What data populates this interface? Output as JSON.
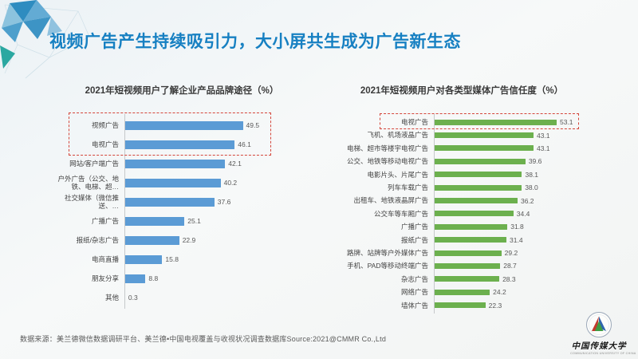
{
  "slide": {
    "title": "视频广告产生持续吸引力，大小屏共生成为广告新生态",
    "source_note": "数据来源：美兰德微信数据调研平台、美兰德•中国电视覆盖与收视状况调查数据库Source:2021@CMMR Co.,Ltd"
  },
  "colors": {
    "title_blue": "#1780c2",
    "bar_blue": "#5b9bd5",
    "bar_green": "#6cb04e",
    "highlight_red": "#d4453a",
    "value_text": "#595959"
  },
  "logo": {
    "name": "中国传媒大学",
    "subtext": "COMMUNICATION UNIVERSITY OF CHINA"
  },
  "chart_data": [
    {
      "type": "bar",
      "orientation": "horizontal",
      "title": "2021年短视频用户了解企业产品品牌途径（%）",
      "categories": [
        "视频广告",
        "电视广告",
        "网站/客户端广告",
        "户外广告（公交、地铁、电梯、超…",
        "社交媒体（微信推送、…",
        "广播广告",
        "报纸/杂志广告",
        "电商直播",
        "朋友分享",
        "其他"
      ],
      "values": [
        49.5,
        46.1,
        42.1,
        40.2,
        37.6,
        25.1,
        22.9,
        15.8,
        8.8,
        0.3
      ],
      "bar_color": "#5b9bd5",
      "highlight_count": 2,
      "highlight_note": "red dashed emphasis box around top 2 bars",
      "grid": false,
      "legend": false,
      "data_labels": true
    },
    {
      "type": "bar",
      "orientation": "horizontal",
      "title": "2021年短视频用户对各类型媒体广告信任度（%）",
      "categories": [
        "电视广告",
        "飞机、机场液晶广告",
        "电梯、超市等楼宇电视广告",
        "公交、地铁等移动电视广告",
        "电影片头、片尾广告",
        "列车车载广告",
        "出租车、地铁液晶屏广告",
        "公交车等车厢广告",
        "广播广告",
        "报纸广告",
        "路牌、站牌等户外媒体广告",
        "手机、PAD等移动终端广告",
        "杂志广告",
        "网络广告",
        "墙体广告"
      ],
      "values": [
        53.1,
        43.1,
        43.1,
        39.6,
        38.1,
        38.0,
        36.2,
        34.4,
        31.8,
        31.4,
        29.2,
        28.7,
        28.3,
        24.2,
        22.3
      ],
      "bar_color": "#6cb04e",
      "highlight_count": 1,
      "highlight_note": "red dashed emphasis box around top bar",
      "grid": false,
      "legend": false,
      "data_labels": true
    }
  ]
}
